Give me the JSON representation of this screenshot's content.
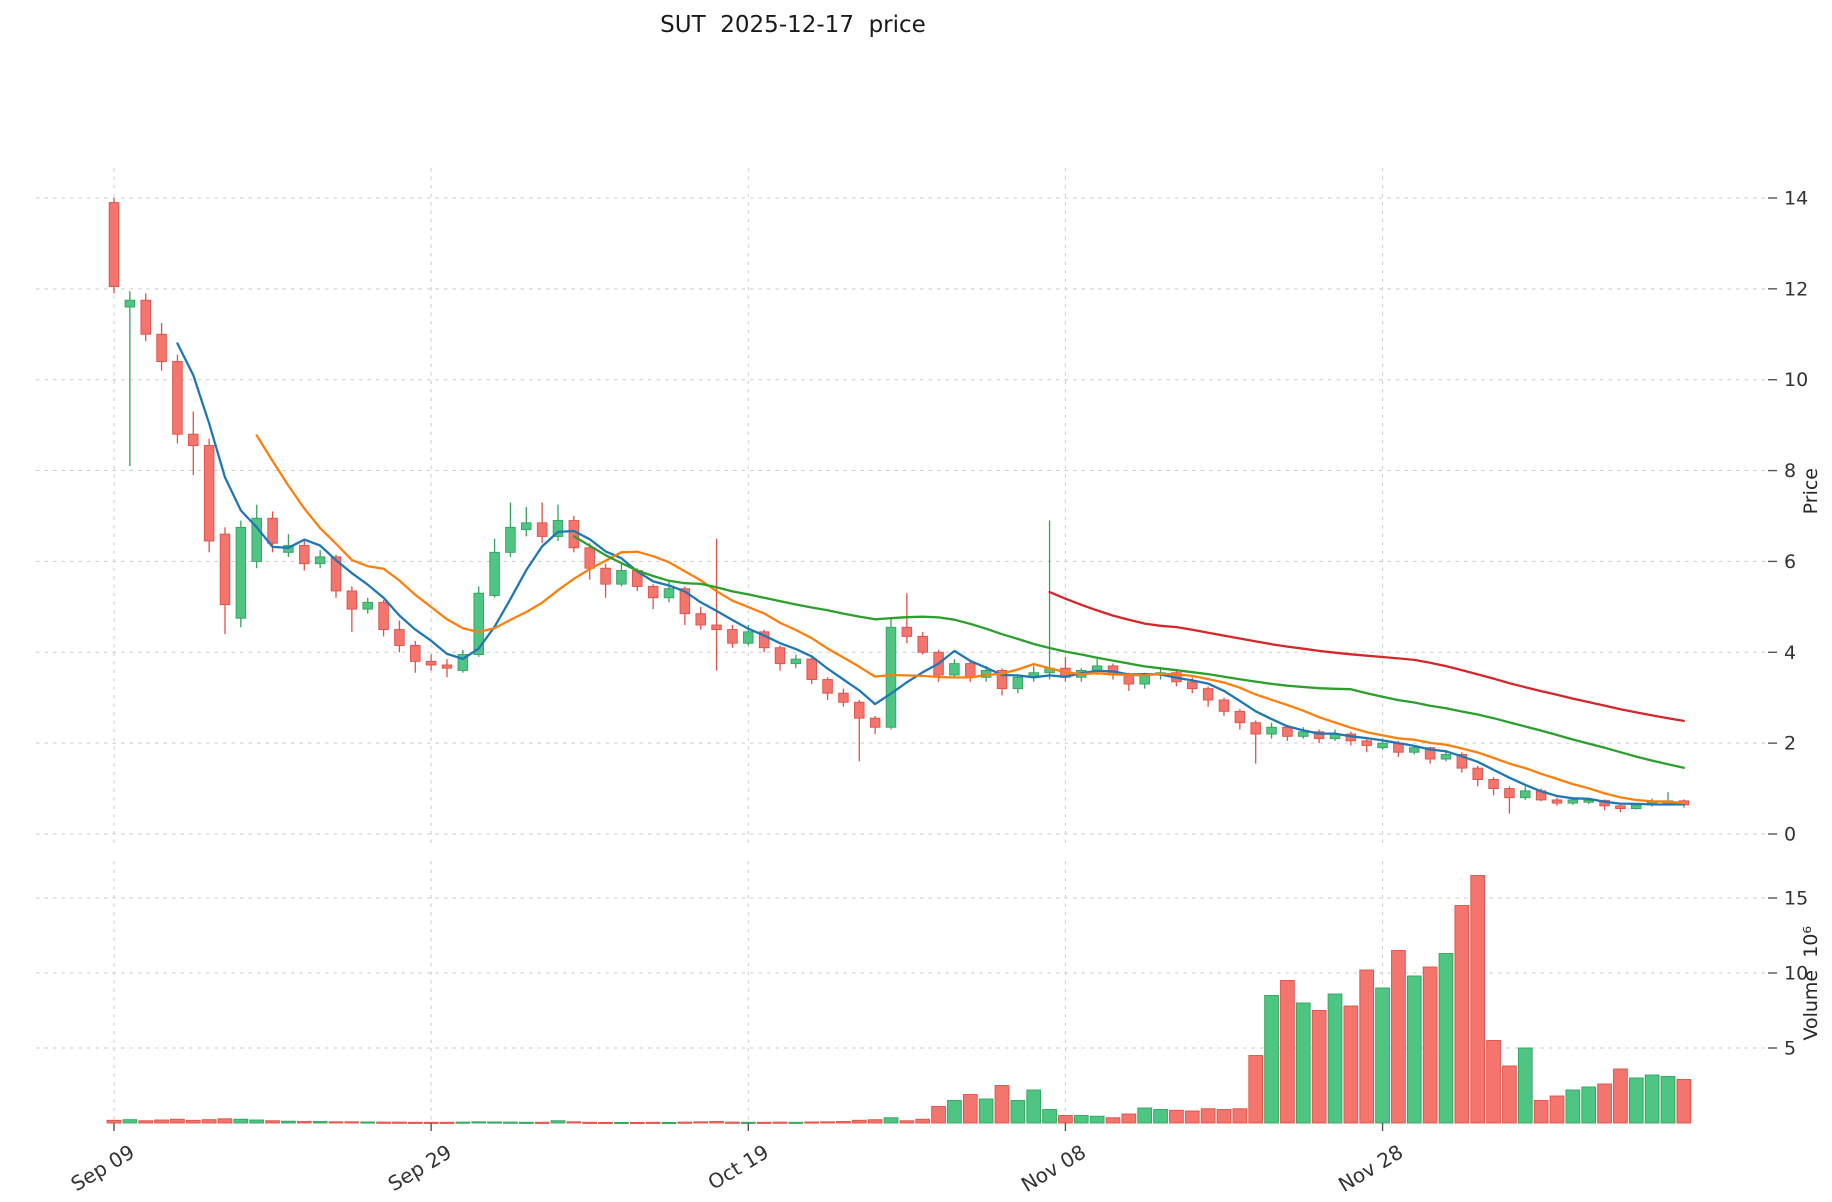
{
  "chart_data": {
    "type": "candlestick_with_volume",
    "title": "SUT  2025-12-17  price",
    "ticker": "SUT",
    "as_of_date": "2025-12-17",
    "price_axis": {
      "label": "Price",
      "ticks": [
        0,
        2,
        4,
        6,
        8,
        10,
        12,
        14
      ],
      "range": [
        -0.3,
        14.8
      ]
    },
    "volume_axis": {
      "label": "Volume  10⁶",
      "ticks": [
        5,
        10,
        15
      ],
      "unit": "millions"
    },
    "x_axis": {
      "ticks": [
        {
          "index": 0,
          "label": "Sep 09"
        },
        {
          "index": 20,
          "label": "Sep 29"
        },
        {
          "index": 40,
          "label": "Oct 19"
        },
        {
          "index": 60,
          "label": "Nov 08"
        },
        {
          "index": 80,
          "label": "Nov 28"
        }
      ],
      "tick_rotation": -31,
      "grid": true
    },
    "moving_averages": [
      {
        "window": 5,
        "color": "#1f77b4"
      },
      {
        "window": 10,
        "color": "#ff7f0e"
      },
      {
        "window": 30,
        "color": "#2ca02c"
      },
      {
        "window": 60,
        "color": "#d62728"
      }
    ],
    "colors": {
      "up_fill": "#4ec583",
      "up_edge": "#33a35c",
      "down_fill": "#f3756d",
      "down_edge": "#de5149",
      "grid": "#cccccc",
      "tick_text": "#333333"
    },
    "dates": [
      "2025-09-09",
      "2025-09-10",
      "2025-09-11",
      "2025-09-12",
      "2025-09-13",
      "2025-09-14",
      "2025-09-15",
      "2025-09-16",
      "2025-09-17",
      "2025-09-18",
      "2025-09-19",
      "2025-09-20",
      "2025-09-21",
      "2025-09-22",
      "2025-09-23",
      "2025-09-24",
      "2025-09-25",
      "2025-09-26",
      "2025-09-27",
      "2025-09-28",
      "2025-09-29",
      "2025-09-30",
      "2025-10-01",
      "2025-10-02",
      "2025-10-03",
      "2025-10-04",
      "2025-10-05",
      "2025-10-06",
      "2025-10-07",
      "2025-10-08",
      "2025-10-09",
      "2025-10-10",
      "2025-10-11",
      "2025-10-12",
      "2025-10-13",
      "2025-10-14",
      "2025-10-15",
      "2025-10-16",
      "2025-10-17",
      "2025-10-18",
      "2025-10-19",
      "2025-10-20",
      "2025-10-21",
      "2025-10-22",
      "2025-10-23",
      "2025-10-24",
      "2025-10-25",
      "2025-10-26",
      "2025-10-27",
      "2025-10-28",
      "2025-10-29",
      "2025-10-30",
      "2025-10-31",
      "2025-11-01",
      "2025-11-02",
      "2025-11-03",
      "2025-11-04",
      "2025-11-05",
      "2025-11-06",
      "2025-11-07",
      "2025-11-08",
      "2025-11-09",
      "2025-11-10",
      "2025-11-11",
      "2025-11-12",
      "2025-11-13",
      "2025-11-14",
      "2025-11-15",
      "2025-11-16",
      "2025-11-17",
      "2025-11-18",
      "2025-11-19",
      "2025-11-20",
      "2025-11-21",
      "2025-11-22",
      "2025-11-23",
      "2025-11-24",
      "2025-11-25",
      "2025-11-26",
      "2025-11-27",
      "2025-11-28",
      "2025-11-29",
      "2025-11-30",
      "2025-12-01",
      "2025-12-02",
      "2025-12-03",
      "2025-12-04",
      "2025-12-05",
      "2025-12-06",
      "2025-12-07",
      "2025-12-08",
      "2025-12-09",
      "2025-12-10",
      "2025-12-11",
      "2025-12-12",
      "2025-12-13",
      "2025-12-14",
      "2025-12-15",
      "2025-12-16",
      "2025-12-17"
    ],
    "open": [
      13.9,
      11.6,
      11.75,
      11.0,
      10.4,
      8.8,
      8.55,
      6.6,
      4.75,
      6.0,
      6.95,
      6.2,
      6.35,
      5.95,
      6.1,
      5.35,
      4.95,
      5.1,
      4.5,
      4.15,
      3.8,
      3.72,
      3.6,
      3.95,
      5.25,
      6.2,
      6.7,
      6.85,
      6.55,
      6.9,
      6.3,
      5.85,
      5.5,
      5.8,
      5.45,
      5.2,
      5.4,
      4.85,
      4.6,
      4.5,
      4.2,
      4.45,
      4.1,
      3.75,
      3.85,
      3.4,
      3.1,
      2.9,
      2.55,
      2.35,
      4.55,
      4.35,
      4.0,
      3.5,
      3.75,
      3.45,
      3.6,
      3.2,
      3.45,
      3.55,
      3.65,
      3.45,
      3.6,
      3.7,
      3.5,
      3.3,
      3.5,
      3.55,
      3.35,
      3.2,
      2.95,
      2.7,
      2.45,
      2.2,
      2.35,
      2.15,
      2.25,
      2.1,
      2.2,
      2.05,
      1.9,
      2.0,
      1.8,
      1.9,
      1.65,
      1.75,
      1.45,
      1.2,
      1.0,
      0.8,
      0.95,
      0.75,
      0.68,
      0.7,
      0.74,
      0.62,
      0.56,
      0.64,
      0.66,
      0.73
    ],
    "high": [
      14.0,
      11.95,
      11.9,
      11.25,
      10.55,
      9.3,
      8.7,
      6.75,
      6.9,
      7.25,
      7.1,
      6.6,
      6.45,
      6.25,
      6.15,
      5.45,
      5.2,
      5.15,
      4.7,
      4.25,
      3.95,
      3.85,
      4.05,
      5.45,
      6.5,
      7.3,
      7.2,
      7.3,
      7.25,
      7.0,
      6.4,
      5.95,
      5.95,
      5.85,
      5.5,
      5.55,
      5.45,
      5.0,
      6.5,
      4.6,
      4.6,
      4.5,
      4.15,
      3.95,
      3.9,
      3.45,
      3.2,
      2.95,
      2.6,
      4.75,
      5.3,
      4.45,
      4.05,
      3.85,
      3.8,
      3.7,
      3.65,
      3.5,
      3.7,
      6.9,
      3.9,
      3.65,
      3.85,
      3.75,
      3.55,
      3.55,
      3.65,
      3.6,
      3.45,
      3.25,
      3.0,
      2.75,
      2.5,
      2.45,
      2.4,
      2.35,
      2.3,
      2.3,
      2.25,
      2.1,
      2.1,
      2.05,
      1.95,
      1.92,
      1.85,
      1.8,
      1.5,
      1.25,
      1.05,
      1.05,
      1.0,
      0.8,
      0.78,
      0.78,
      0.76,
      0.66,
      0.66,
      0.78,
      0.92,
      0.76
    ],
    "low": [
      11.9,
      8.1,
      10.85,
      10.2,
      8.6,
      7.9,
      6.2,
      4.4,
      4.55,
      5.85,
      6.2,
      6.1,
      5.8,
      5.85,
      5.2,
      4.45,
      4.85,
      4.35,
      4.0,
      3.55,
      3.6,
      3.45,
      3.55,
      3.9,
      5.2,
      6.1,
      6.55,
      6.4,
      6.45,
      6.2,
      5.6,
      5.2,
      5.45,
      5.35,
      4.95,
      5.1,
      4.6,
      4.5,
      3.6,
      4.1,
      4.15,
      4.0,
      3.6,
      3.65,
      3.3,
      2.95,
      2.8,
      1.6,
      2.2,
      2.3,
      4.2,
      3.95,
      3.35,
      3.45,
      3.35,
      3.35,
      3.05,
      3.1,
      3.35,
      3.4,
      3.35,
      3.35,
      3.5,
      3.4,
      3.15,
      3.2,
      3.4,
      3.25,
      3.1,
      2.8,
      2.6,
      2.3,
      1.55,
      2.1,
      2.05,
      2.1,
      2.0,
      2.05,
      1.95,
      1.8,
      1.85,
      1.7,
      1.75,
      1.55,
      1.6,
      1.35,
      1.05,
      0.85,
      0.45,
      0.75,
      0.72,
      0.62,
      0.64,
      0.66,
      0.52,
      0.48,
      0.54,
      0.6,
      0.63,
      0.58
    ],
    "close": [
      12.05,
      11.75,
      11.0,
      10.4,
      8.8,
      8.55,
      6.45,
      5.05,
      6.75,
      6.95,
      6.4,
      6.35,
      5.95,
      6.1,
      5.35,
      4.95,
      5.1,
      4.5,
      4.15,
      3.8,
      3.72,
      3.65,
      3.95,
      5.3,
      6.2,
      6.75,
      6.85,
      6.55,
      6.9,
      6.3,
      5.85,
      5.5,
      5.8,
      5.45,
      5.2,
      5.4,
      4.85,
      4.6,
      4.5,
      4.2,
      4.45,
      4.1,
      3.75,
      3.85,
      3.4,
      3.1,
      2.9,
      2.55,
      2.35,
      4.55,
      4.35,
      4.0,
      3.5,
      3.75,
      3.45,
      3.6,
      3.2,
      3.45,
      3.55,
      3.65,
      3.45,
      3.6,
      3.7,
      3.5,
      3.3,
      3.5,
      3.55,
      3.35,
      3.2,
      2.95,
      2.7,
      2.45,
      2.2,
      2.35,
      2.15,
      2.25,
      2.1,
      2.2,
      2.05,
      1.95,
      2.0,
      1.8,
      1.9,
      1.65,
      1.75,
      1.45,
      1.2,
      1.0,
      0.8,
      0.95,
      0.75,
      0.68,
      0.75,
      0.74,
      0.62,
      0.56,
      0.64,
      0.7,
      0.73,
      0.64
    ],
    "volume_millions": [
      0.18,
      0.22,
      0.15,
      0.2,
      0.25,
      0.18,
      0.22,
      0.28,
      0.25,
      0.2,
      0.15,
      0.12,
      0.1,
      0.1,
      0.08,
      0.08,
      0.07,
      0.06,
      0.06,
      0.05,
      0.05,
      0.05,
      0.06,
      0.08,
      0.07,
      0.06,
      0.05,
      0.05,
      0.15,
      0.08,
      0.05,
      0.04,
      0.04,
      0.04,
      0.05,
      0.04,
      0.06,
      0.08,
      0.1,
      0.06,
      0.05,
      0.05,
      0.06,
      0.05,
      0.07,
      0.08,
      0.1,
      0.18,
      0.22,
      0.35,
      0.15,
      0.25,
      1.1,
      1.5,
      1.9,
      1.6,
      2.5,
      1.5,
      2.2,
      0.9,
      0.5,
      0.5,
      0.45,
      0.35,
      0.6,
      1.0,
      0.9,
      0.85,
      0.8,
      0.95,
      0.9,
      0.95,
      4.5,
      8.5,
      9.5,
      8.0,
      7.5,
      8.6,
      7.8,
      10.2,
      9.0,
      11.5,
      9.8,
      10.4,
      11.3,
      14.5,
      16.5,
      5.5,
      3.8,
      5.0,
      1.5,
      1.8,
      2.2,
      2.4,
      2.6,
      3.6,
      3.0,
      3.2,
      3.1,
      2.9
    ]
  }
}
